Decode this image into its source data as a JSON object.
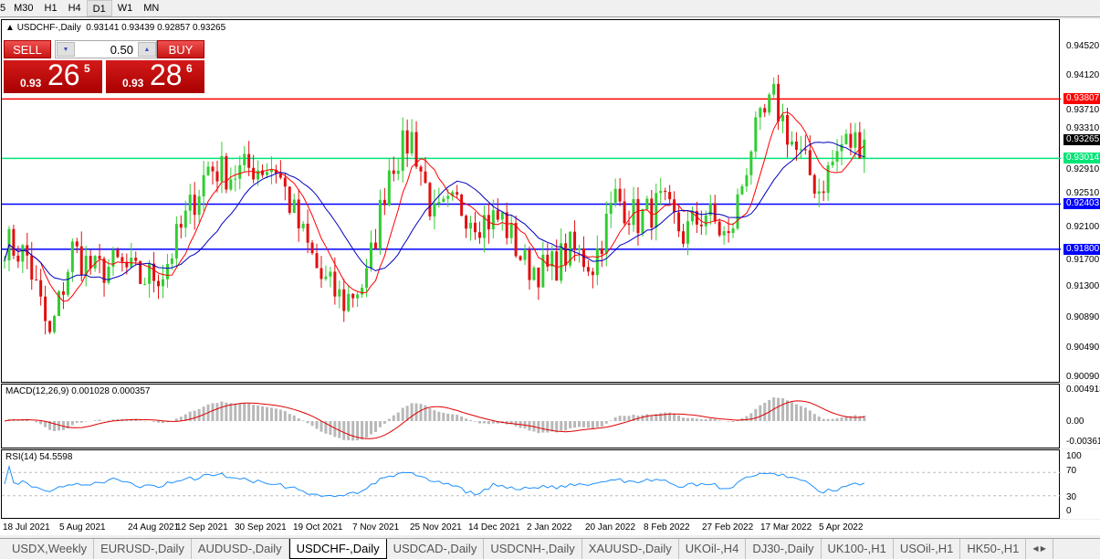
{
  "toolbar": {
    "timeframes": [
      "5",
      "M30",
      "H1",
      "H4",
      "D1",
      "W1",
      "MN"
    ],
    "active": "D1"
  },
  "chart": {
    "title": "USDCHF-,Daily",
    "ohlc": "0.93141 0.93439 0.92857 0.93265",
    "trade": {
      "sell_label": "SELL",
      "buy_label": "BUY",
      "lot": "0.50",
      "sell": {
        "prefix": "0.93",
        "big": "26",
        "pip": "5"
      },
      "buy": {
        "prefix": "0.93",
        "big": "28",
        "pip": "6"
      }
    },
    "price_axis": [
      "0.94520",
      "0.94120",
      "0.93710",
      "0.93310",
      "0.92910",
      "0.92510",
      "0.92100",
      "0.91700",
      "0.91300",
      "0.90890",
      "0.90490",
      "0.90090"
    ],
    "current_price": "0.93265",
    "hlines": [
      {
        "price": "0.93807",
        "color": "#ff0000"
      },
      {
        "price": "0.93014",
        "color": "#00e676"
      },
      {
        "price": "0.92403",
        "color": "#0000ff"
      },
      {
        "price": "0.91800",
        "color": "#0000ff"
      }
    ],
    "colors": {
      "bull": "#32cd32",
      "bear": "#e01010",
      "ma_fast": "#ff0000",
      "ma_slow": "#0000c0"
    }
  },
  "chart_data": {
    "type": "candlestick",
    "ylim": [
      0.9009,
      0.9452
    ],
    "x_range": [
      "18 Jul 2021",
      "8 Apr 2022"
    ],
    "weekly_closes_approx": [
      0.919,
      0.917,
      0.906,
      0.918,
      0.915,
      0.916,
      0.914,
      0.915,
      0.922,
      0.929,
      0.928,
      0.929,
      0.929,
      0.921,
      0.914,
      0.911,
      0.914,
      0.929,
      0.933,
      0.922,
      0.924,
      0.922,
      0.922,
      0.916,
      0.915,
      0.918,
      0.916,
      0.925,
      0.922,
      0.924,
      0.92,
      0.923,
      0.919,
      0.932,
      0.938,
      0.931,
      0.926,
      0.932,
      0.93265
    ]
  },
  "macd": {
    "label": "MACD(12,26,9) 0.001028 0.000357",
    "axis": [
      "0.004913",
      "0.00",
      "-0.003614"
    ]
  },
  "rsi": {
    "label": "RSI(14) 54.5598",
    "axis": [
      "100",
      "70",
      "30",
      "0"
    ]
  },
  "dates": [
    "18 Jul 2021",
    "5 Aug 2021",
    "24 Aug 2021",
    "12 Sep 2021",
    "30 Sep 2021",
    "19 Oct 2021",
    "7 Nov 2021",
    "25 Nov 2021",
    "14 Dec 2021",
    "2 Jan 2022",
    "20 Jan 2022",
    "8 Feb 2022",
    "27 Feb 2022",
    "17 Mar 2022",
    "5 Apr 2022"
  ],
  "tabs": [
    "USDX,Weekly",
    "EURUSD-,Daily",
    "AUDUSD-,Daily",
    "USDCHF-,Daily",
    "USDCAD-,Daily",
    "USDCNH-,Daily",
    "XAUUSD-,Daily",
    "UKOil-,H4",
    "DJ30-,Daily",
    "UK100-,H1",
    "USOil-,H1",
    "HK50-,H1"
  ],
  "active_tab": "USDCHF-,Daily"
}
